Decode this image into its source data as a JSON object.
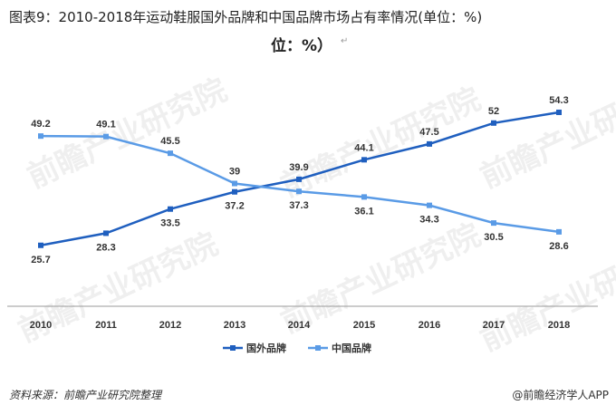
{
  "header": {
    "title": "图表9：2010-2018年运动鞋服国外品牌和中国品牌市场占有率情况(单位：%)",
    "unit_fragment": "位：%）",
    "para_mark": "↵"
  },
  "footer": {
    "source": "资料来源：前瞻产业研究院整理",
    "brand": "@前瞻经济学人APP"
  },
  "watermark": {
    "text": "前瞻产业研究院"
  },
  "colors": {
    "series_foreign": "#1f5fbf",
    "series_china": "#5a9be6",
    "axis": "#999999"
  },
  "chart_data": {
    "type": "line",
    "title": "2010-2018年运动鞋服国外品牌和中国品牌市场占有率情况(单位：%)",
    "x": [
      "2010",
      "2011",
      "2012",
      "2013",
      "2014",
      "2015",
      "2016",
      "2017",
      "2018"
    ],
    "series": [
      {
        "name": "国外品牌",
        "values": [
          25.7,
          28.3,
          33.5,
          37.2,
          39.9,
          44.1,
          47.5,
          52,
          54.3
        ],
        "color": "#1f5fbf"
      },
      {
        "name": "中国品牌",
        "values": [
          49.2,
          49.1,
          45.5,
          39,
          37.3,
          36.1,
          34.3,
          30.5,
          28.6
        ],
        "color": "#5a9be6"
      }
    ],
    "ylim": [
      20,
      58
    ],
    "grid": false,
    "legend": "bottom-center",
    "xlabel": "",
    "ylabel": ""
  }
}
